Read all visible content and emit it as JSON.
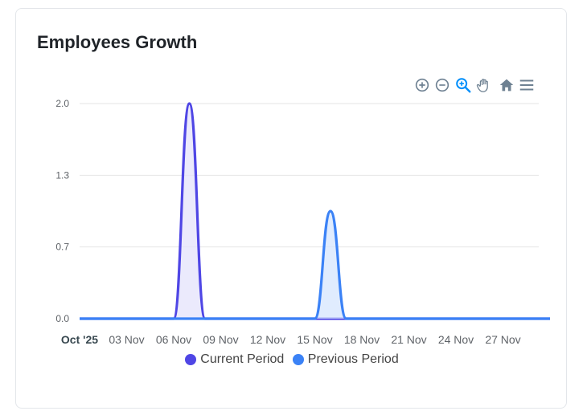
{
  "card": {
    "title": "Employees Growth"
  },
  "toolbar": {
    "items": [
      {
        "name": "zoom-in-icon"
      },
      {
        "name": "zoom-out-icon"
      },
      {
        "name": "selection-zoom-icon"
      },
      {
        "name": "pan-hand-icon"
      },
      {
        "name": "reset-home-icon"
      },
      {
        "name": "menu-icon"
      }
    ]
  },
  "colors": {
    "current": "#4f46e5",
    "current_fill": "#e4e3fb",
    "previous": "#3b82f6",
    "previous_fill": "#d6e6fd",
    "grid": "#e6e6e6",
    "axis_text": "#5f6368",
    "toolbar_icon": "#6e8192",
    "toolbar_active": "#008ffb"
  },
  "chart_data": {
    "type": "area",
    "x_tick_labels": [
      "Oct '25",
      "03 Nov",
      "06 Nov",
      "09 Nov",
      "12 Nov",
      "15 Nov",
      "18 Nov",
      "21 Nov",
      "24 Nov",
      "27 Nov"
    ],
    "y_tick_labels": [
      "2.0",
      "1.3",
      "0.7",
      "0.0"
    ],
    "ylim": [
      0,
      2
    ],
    "grid": true,
    "legend_position": "bottom",
    "series": [
      {
        "name": "Current Period",
        "color": "#4f46e5",
        "points": [
          {
            "x": "2025-10-31",
            "y": 0
          },
          {
            "x": "2025-11-06",
            "y": 0
          },
          {
            "x": "2025-11-07",
            "y": 2
          },
          {
            "x": "2025-11-08",
            "y": 0
          },
          {
            "x": "2025-11-30",
            "y": 0
          }
        ]
      },
      {
        "name": "Previous Period",
        "color": "#3b82f6",
        "points": [
          {
            "x": "2025-10-31",
            "y": 0
          },
          {
            "x": "2025-11-15",
            "y": 0
          },
          {
            "x": "2025-11-16",
            "y": 1
          },
          {
            "x": "2025-11-17",
            "y": 0
          },
          {
            "x": "2025-11-30",
            "y": 0
          }
        ]
      }
    ]
  }
}
